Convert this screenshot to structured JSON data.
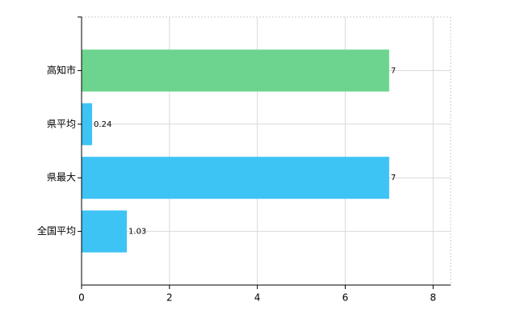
{
  "chart_data": {
    "type": "bar",
    "orientation": "horizontal",
    "categories": [
      "高知市",
      "県平均",
      "県最大",
      "全国平均"
    ],
    "values": [
      7,
      0.24,
      7,
      1.03
    ],
    "colors": [
      "#6dd48f",
      "#3ec3f5",
      "#3ec3f5",
      "#3ec3f5"
    ],
    "xlim": [
      0,
      8.4
    ],
    "xticks": [
      0,
      2,
      4,
      6,
      8
    ],
    "grid": true
  }
}
